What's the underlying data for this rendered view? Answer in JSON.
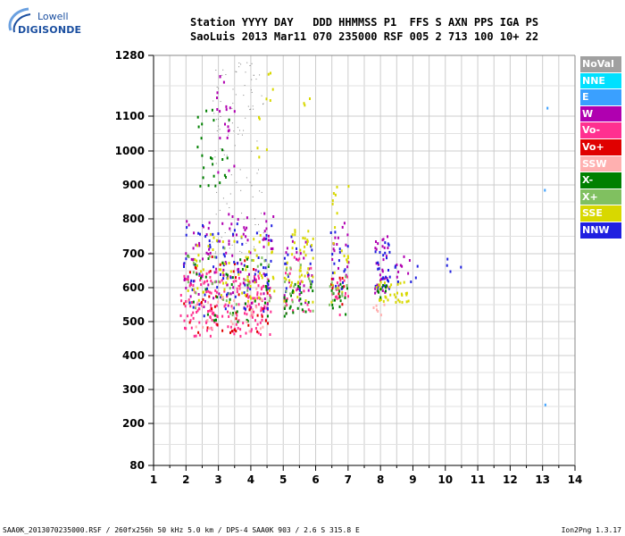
{
  "logo": {
    "line1": "Lowell",
    "line2": "DIGISONDE"
  },
  "header": {
    "labels": "Station YYYY DAY   DDD HHMMSS P1  FFS S AXN PPS IGA PS",
    "values": "SaoLuis 2013 Mar11 070 235000 RSF 005 2 713 100 10+ 22"
  },
  "footer": {
    "left": "SAA0K_2013070235000.RSF / 260fx256h 50 kHz 5.0 km / DPS-4 SAA0K 903 / 2.6 S 315.8 E",
    "right": "Ion2Png 1.3.17"
  },
  "legend": [
    {
      "label": "NoVal",
      "bg": "#a0a0a0",
      "fg": "#ffffff"
    },
    {
      "label": "NNE",
      "bg": "#00e0ff",
      "fg": "#ffffff"
    },
    {
      "label": "E",
      "bg": "#3aa0ff",
      "fg": "#ffffff"
    },
    {
      "label": "W",
      "bg": "#b000b0",
      "fg": "#ffffff"
    },
    {
      "label": "Vo-",
      "bg": "#ff3090",
      "fg": "#ffffff"
    },
    {
      "label": "Vo+",
      "bg": "#e00000",
      "fg": "#ffffff"
    },
    {
      "label": "SSW",
      "bg": "#ffb0b0",
      "fg": "#ffffff"
    },
    {
      "label": "X-",
      "bg": "#008000",
      "fg": "#ffffff"
    },
    {
      "label": "X+",
      "bg": "#80c060",
      "fg": "#ffffff"
    },
    {
      "label": "SSE",
      "bg": "#d8d800",
      "fg": "#ffffff"
    },
    {
      "label": "NNW",
      "bg": "#2020e0",
      "fg": "#ffffff"
    }
  ],
  "chart_data": {
    "type": "scatter",
    "xlim": [
      1,
      14
    ],
    "ylim": [
      80,
      1280
    ],
    "y_scale": "nonlinear (ionogram virtual height axis)",
    "x_ticks": [
      "1",
      "2",
      "3",
      "4",
      "5",
      "6",
      "7",
      "8",
      "9",
      "10",
      "11",
      "12",
      "13",
      "14"
    ],
    "y_ticks": [
      {
        "v": 1280,
        "label": "1280"
      },
      {
        "v": 1100,
        "label": "1100"
      },
      {
        "v": 1000,
        "label": "1000"
      },
      {
        "v": 900,
        "label": "900"
      },
      {
        "v": 800,
        "label": "800"
      },
      {
        "v": 700,
        "label": "700"
      },
      {
        "v": 600,
        "label": "600"
      },
      {
        "v": 500,
        "label": "500"
      },
      {
        "v": 400,
        "label": "400"
      },
      {
        "v": 300,
        "label": "300"
      },
      {
        "v": 200,
        "label": "200"
      },
      {
        "v": 80,
        "label": "80"
      }
    ],
    "grid": true,
    "series": [
      {
        "name": "Vo-",
        "color": "#ff3090",
        "regions": [
          [
            1.8,
            3.2,
            460,
            650,
            90
          ],
          [
            3.2,
            4.6,
            460,
            640,
            90
          ],
          [
            5.0,
            5.9,
            520,
            700,
            25
          ],
          [
            6.4,
            7.0,
            520,
            640,
            15
          ]
        ]
      },
      {
        "name": "Vo+",
        "color": "#e00000",
        "regions": [
          [
            1.9,
            4.6,
            470,
            700,
            45
          ],
          [
            6.4,
            6.9,
            540,
            650,
            8
          ]
        ]
      },
      {
        "name": "W",
        "color": "#b000b0",
        "regions": [
          [
            1.9,
            4.7,
            540,
            820,
            110
          ],
          [
            5.0,
            5.9,
            560,
            760,
            25
          ],
          [
            6.4,
            7.0,
            600,
            800,
            20
          ],
          [
            7.8,
            8.2,
            580,
            760,
            30
          ],
          [
            8.2,
            8.9,
            620,
            700,
            8
          ],
          [
            2.9,
            3.5,
            930,
            1230,
            20
          ]
        ]
      },
      {
        "name": "NNW",
        "color": "#2020e0",
        "regions": [
          [
            1.9,
            4.7,
            520,
            800,
            80
          ],
          [
            5.0,
            5.9,
            580,
            760,
            15
          ],
          [
            6.4,
            7.0,
            600,
            780,
            15
          ],
          [
            7.8,
            8.3,
            600,
            740,
            25
          ],
          [
            8.4,
            9.2,
            620,
            680,
            6
          ],
          [
            10.0,
            10.7,
            650,
            690,
            4
          ]
        ]
      },
      {
        "name": "SSE",
        "color": "#d8d800",
        "regions": [
          [
            2.0,
            4.7,
            560,
            760,
            70
          ],
          [
            5.0,
            5.9,
            560,
            790,
            45
          ],
          [
            6.4,
            7.0,
            560,
            950,
            20
          ],
          [
            7.8,
            8.9,
            560,
            620,
            35
          ],
          [
            4.0,
            4.7,
            980,
            1240,
            10
          ],
          [
            5.6,
            5.8,
            1100,
            1160,
            3
          ]
        ]
      },
      {
        "name": "X-",
        "color": "#008000",
        "regions": [
          [
            2.3,
            3.4,
            900,
            1130,
            25
          ],
          [
            1.9,
            4.6,
            500,
            700,
            40
          ],
          [
            5.0,
            5.9,
            510,
            620,
            25
          ],
          [
            6.4,
            7.0,
            520,
            620,
            15
          ],
          [
            7.8,
            8.2,
            570,
            620,
            8
          ]
        ]
      },
      {
        "name": "X+",
        "color": "#80c060",
        "regions": [
          [
            2.0,
            4.6,
            520,
            720,
            30
          ],
          [
            5.0,
            5.9,
            520,
            680,
            15
          ],
          [
            6.4,
            7.0,
            540,
            640,
            10
          ]
        ]
      },
      {
        "name": "SSW",
        "color": "#ffb0b0",
        "regions": [
          [
            2.0,
            4.6,
            470,
            620,
            30
          ],
          [
            7.7,
            8.1,
            520,
            560,
            6
          ]
        ]
      },
      {
        "name": "E",
        "color": "#3aa0ff",
        "regions": [
          [
            13.1,
            13.3,
            1110,
            1130,
            1
          ],
          [
            13.0,
            13.1,
            880,
            890,
            1
          ],
          [
            13.05,
            13.15,
            250,
            260,
            1
          ]
        ]
      },
      {
        "name": "NoVal",
        "color": "#808080",
        "regions": [
          [
            2.8,
            4.4,
            700,
            1260,
            110
          ]
        ]
      }
    ]
  }
}
